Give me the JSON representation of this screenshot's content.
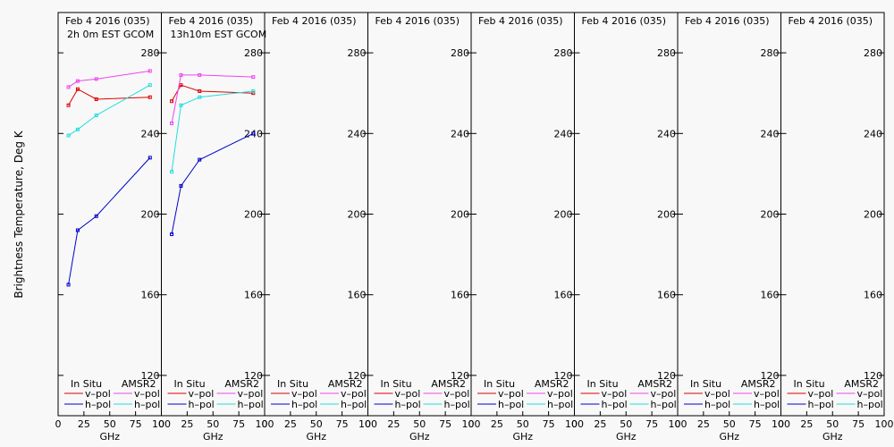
{
  "chart_data": {
    "type": "line",
    "ylabel": "Brightness Temperature, Deg K",
    "xlabel": "GHz",
    "ylim": [
      100,
      300
    ],
    "xlim": [
      0,
      100
    ],
    "yticks": [
      120,
      160,
      200,
      240,
      280
    ],
    "xticks": [
      0,
      25,
      50,
      75,
      100
    ],
    "legend": {
      "col1": "In Situ",
      "col2": "AMSR2",
      "vpol": "v–pol",
      "hpol": "h–pol",
      "insitu_v_color": "#dd0000",
      "insitu_h_color": "#0000cc",
      "amsr_v_color": "#ee44ee",
      "amsr_h_color": "#22dddd"
    },
    "panels": [
      {
        "title": "Feb 4 2016 (035)",
        "subtitle": "2h 0m EST GCOM",
        "series": [
          {
            "kind": "insitu_v",
            "x": [
              10,
              19,
              37,
              89
            ],
            "y": [
              254,
              262,
              257,
              258
            ]
          },
          {
            "kind": "insitu_h",
            "x": [
              10,
              19,
              37,
              89
            ],
            "y": [
              165,
              192,
              199,
              228
            ]
          },
          {
            "kind": "amsr_v",
            "x": [
              10,
              19,
              37,
              89
            ],
            "y": [
              263,
              266,
              267,
              271
            ]
          },
          {
            "kind": "amsr_h",
            "x": [
              10,
              19,
              37,
              89
            ],
            "y": [
              239,
              242,
              249,
              264
            ]
          }
        ]
      },
      {
        "title": "Feb 4 2016 (035)",
        "subtitle": "13h10m EST GCOM",
        "series": [
          {
            "kind": "insitu_v",
            "x": [
              10,
              19,
              37,
              89
            ],
            "y": [
              256,
              264,
              261,
              260
            ]
          },
          {
            "kind": "insitu_h",
            "x": [
              10,
              19,
              37,
              89
            ],
            "y": [
              190,
              214,
              227,
              240
            ]
          },
          {
            "kind": "amsr_v",
            "x": [
              10,
              19,
              37,
              89
            ],
            "y": [
              245,
              269,
              269,
              268
            ]
          },
          {
            "kind": "amsr_h",
            "x": [
              10,
              19,
              37,
              89
            ],
            "y": [
              221,
              254,
              258,
              261
            ]
          }
        ]
      },
      {
        "title": "Feb 4 2016 (035)",
        "subtitle": "",
        "series": []
      },
      {
        "title": "Feb 4 2016 (035)",
        "subtitle": "",
        "series": []
      },
      {
        "title": "Feb 4 2016 (035)",
        "subtitle": "",
        "series": []
      },
      {
        "title": "Feb 4 2016 (035)",
        "subtitle": "",
        "series": []
      },
      {
        "title": "Feb 4 2016 (035)",
        "subtitle": "",
        "series": []
      },
      {
        "title": "Feb 4 2016 (035)",
        "subtitle": "",
        "series": []
      }
    ]
  }
}
